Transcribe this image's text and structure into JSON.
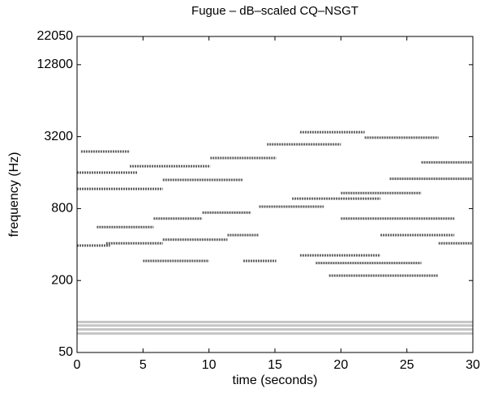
{
  "chart_data": {
    "type": "spectrogram",
    "title": "Fugue – dB–scaled CQ–NSGT",
    "x_label": "time (seconds)",
    "y_label": "frequency (Hz)",
    "xlim": [
      0,
      30
    ],
    "xticks": [
      0,
      5,
      10,
      15,
      20,
      25,
      30
    ],
    "ylim": [
      50,
      22050
    ],
    "yticks": [
      50,
      200,
      800,
      3200,
      12800,
      22050
    ],
    "y_scale": "log",
    "note_color": "#3a3a3a",
    "drone_color": "#a0a0a0",
    "notes": [
      [
        5.0,
        10.0,
        292
      ],
      [
        12.6,
        15.1,
        292
      ],
      [
        19.1,
        27.4,
        220
      ],
      [
        0,
        2.5,
        393
      ],
      [
        2.2,
        6.5,
        410
      ],
      [
        6.5,
        11.4,
        440
      ],
      [
        11.4,
        13.8,
        480
      ],
      [
        1.5,
        5.8,
        560
      ],
      [
        5.8,
        9.5,
        660
      ],
      [
        9.5,
        13.2,
        740
      ],
      [
        13.8,
        18.7,
        830
      ],
      [
        16.3,
        23,
        970
      ],
      [
        20,
        26.1,
        1080
      ],
      [
        0,
        6.5,
        1170
      ],
      [
        6.5,
        12.6,
        1390
      ],
      [
        0,
        4.6,
        1600
      ],
      [
        4,
        10.1,
        1810
      ],
      [
        10.1,
        15.1,
        2120
      ],
      [
        0.3,
        4,
        2400
      ],
      [
        14.4,
        20,
        2760
      ],
      [
        16.9,
        21.8,
        3490
      ],
      [
        21.8,
        27.4,
        3140
      ],
      [
        16.9,
        23,
        325
      ],
      [
        18.1,
        26.1,
        280
      ],
      [
        23,
        28.6,
        480
      ],
      [
        20,
        28.6,
        660
      ],
      [
        27.4,
        30,
        410
      ],
      [
        23.7,
        30,
        1420
      ],
      [
        26.1,
        30,
        1950
      ]
    ],
    "drone": [
      [
        0,
        30,
        72
      ],
      [
        0,
        30,
        78
      ],
      [
        0,
        30,
        84
      ],
      [
        0,
        30,
        90
      ]
    ]
  }
}
